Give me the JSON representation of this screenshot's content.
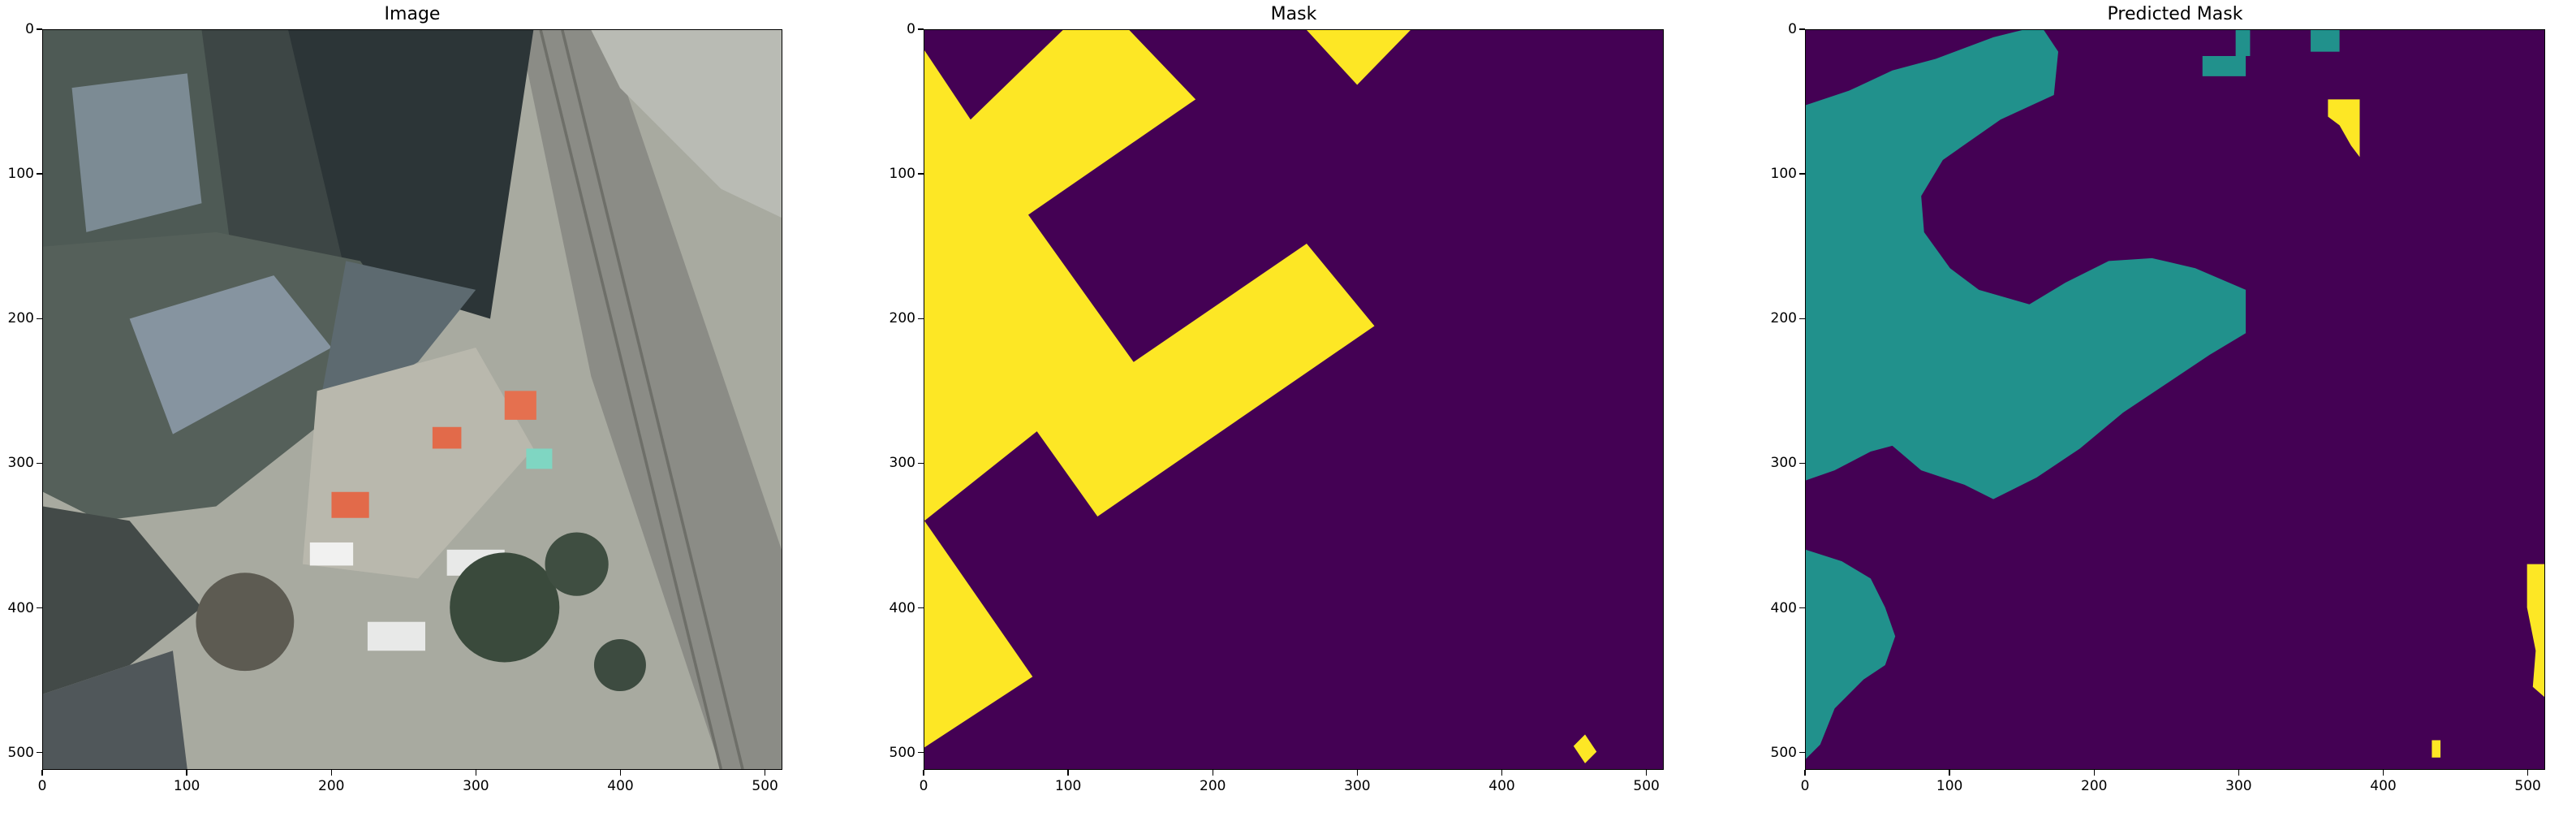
{
  "panels": [
    {
      "title": "Image"
    },
    {
      "title": "Mask"
    },
    {
      "title": "Predicted Mask"
    }
  ],
  "axes": {
    "x_ticks": [
      "0",
      "100",
      "200",
      "300",
      "400",
      "500"
    ],
    "y_ticks": [
      "0",
      "100",
      "200",
      "300",
      "400",
      "500"
    ],
    "x_tick_values": [
      0,
      100,
      200,
      300,
      400,
      500
    ],
    "y_tick_values": [
      0,
      100,
      200,
      300,
      400,
      500
    ],
    "range": [
      0,
      512
    ]
  },
  "colors": {
    "mask_background": "#440154",
    "mask_foreground": "#fde725",
    "pred_class_1": "#21918c",
    "pred_class_2": "#fde725"
  }
}
